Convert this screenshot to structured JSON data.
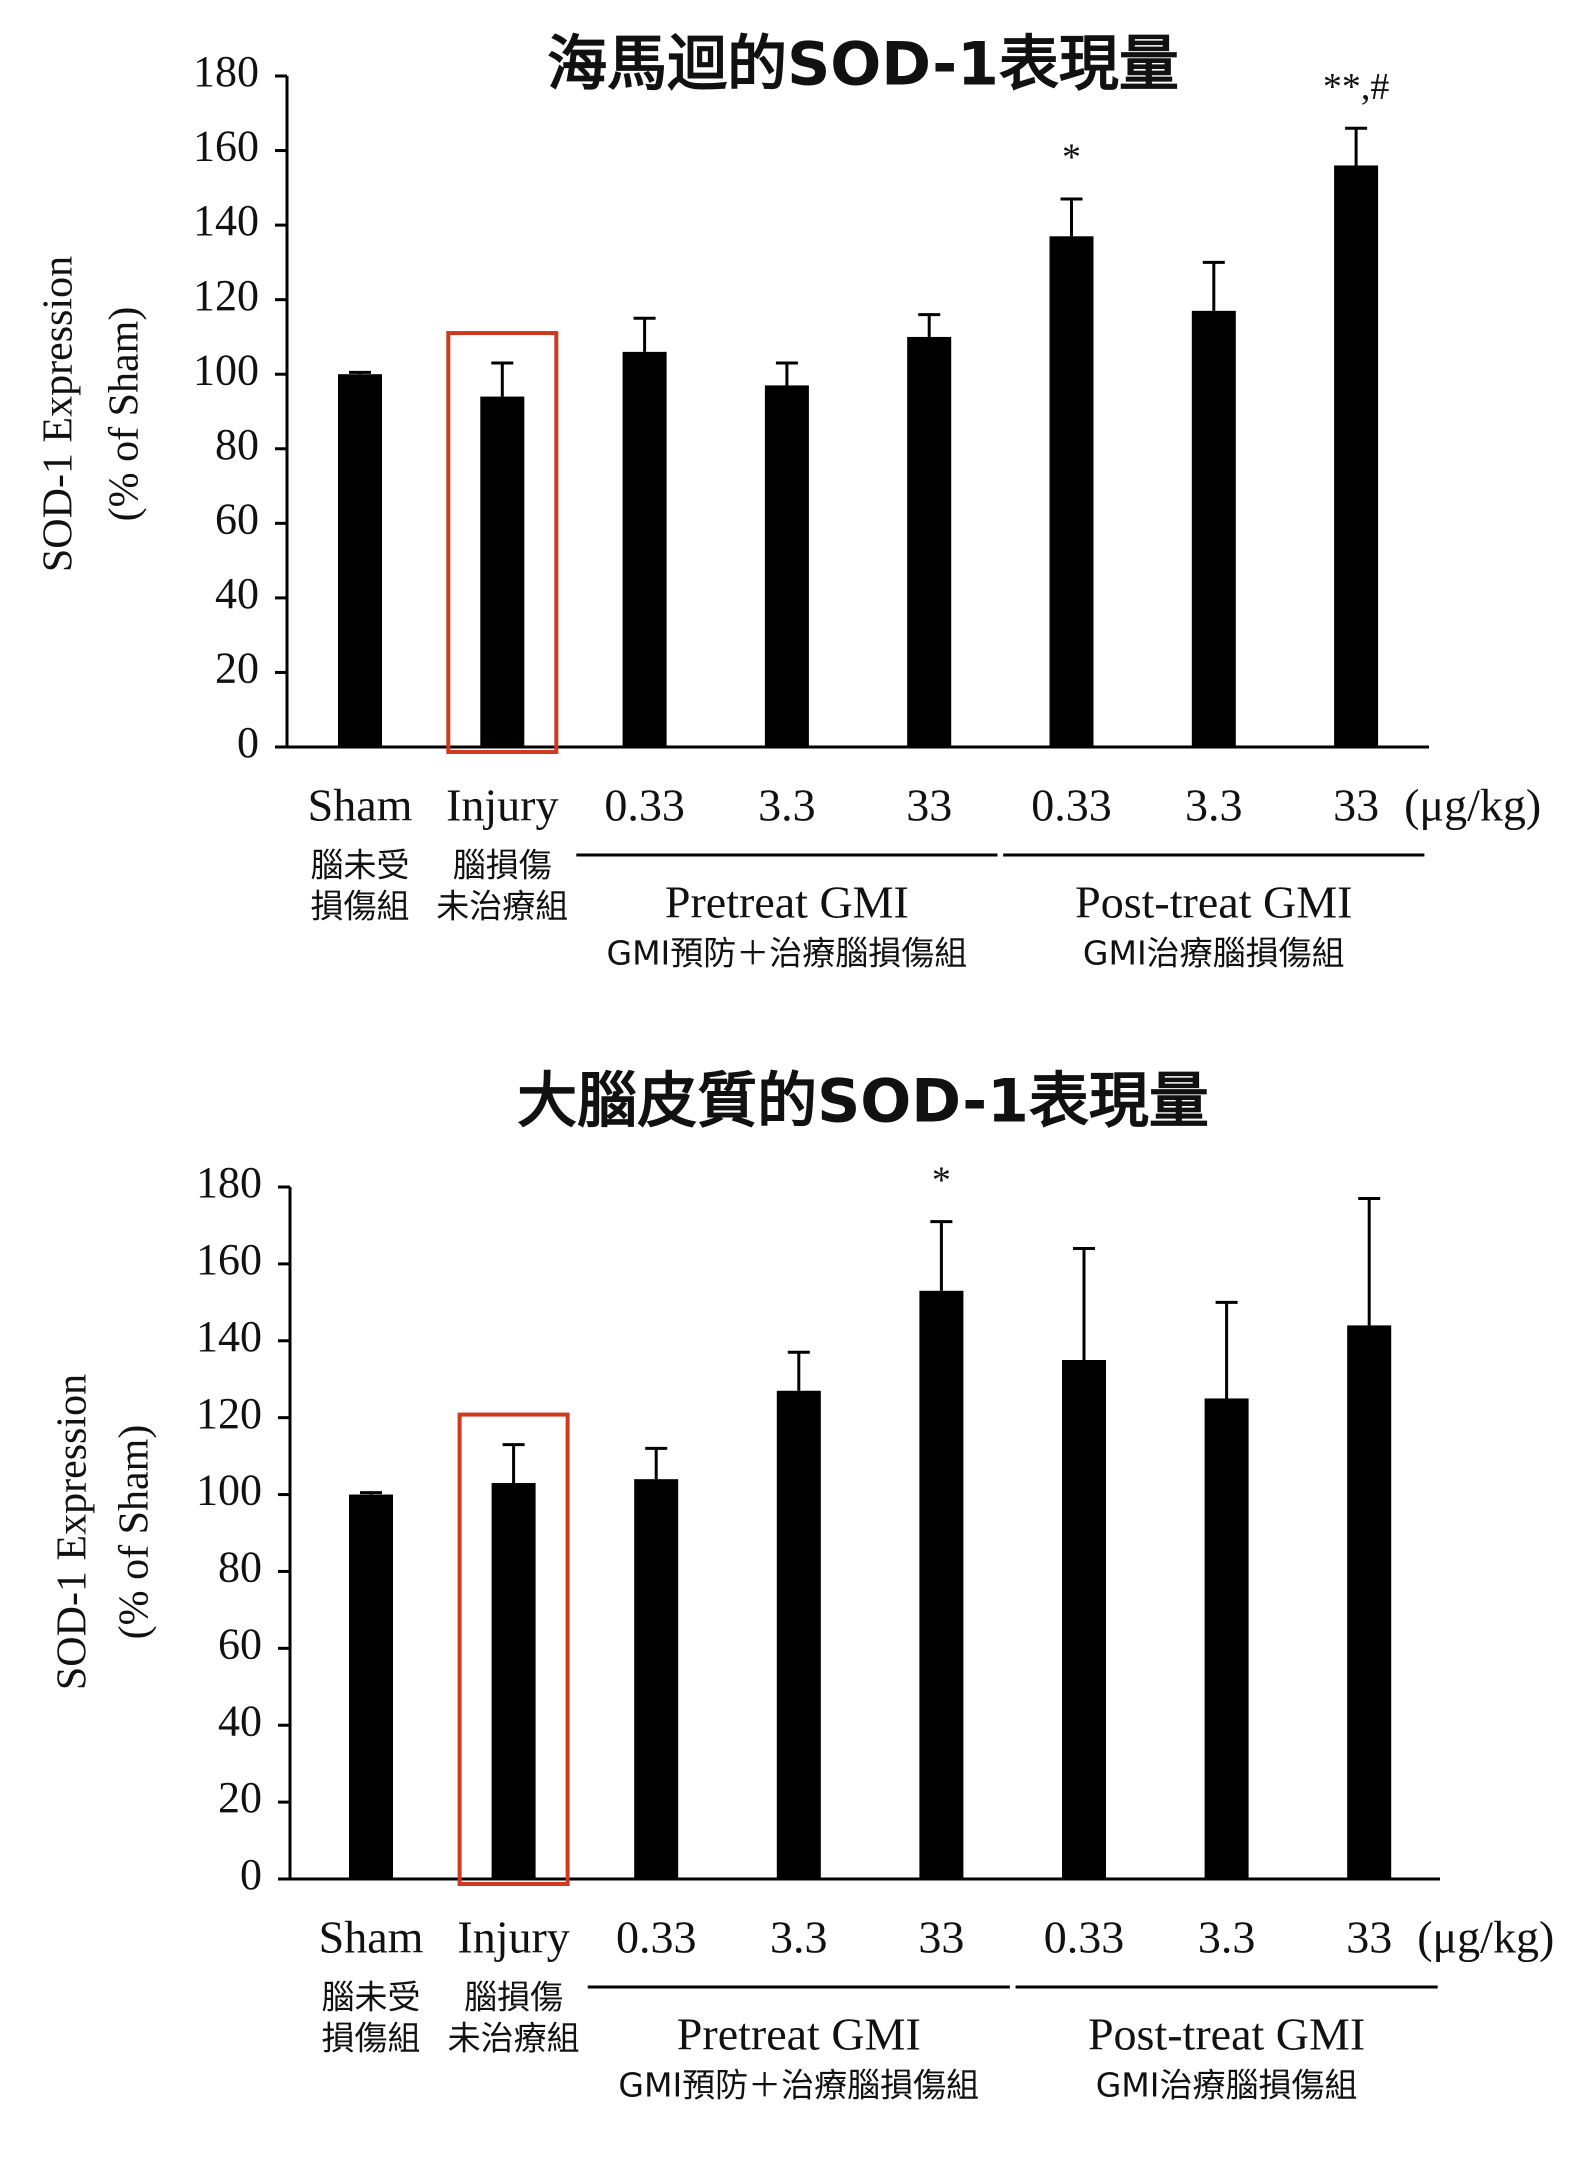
{
  "chart_data": [
    {
      "type": "bar",
      "title": "海馬迴的SOD-1表現量",
      "y_label": [
        "SOD-1 Expression",
        "(% of Sham)"
      ],
      "categories": [
        "Sham",
        "Injury",
        "0.33",
        "3.3",
        "33",
        "0.33",
        "3.3",
        "33"
      ],
      "category_notes": [
        [
          "腦未受",
          "損傷組"
        ],
        [
          "腦損傷",
          "未治療組"
        ],
        null,
        null,
        null,
        null,
        null,
        null
      ],
      "unit": "(μg/kg)",
      "groups": [
        {
          "label": "Pretreat GMI",
          "note": "GMI預防＋治療腦損傷組",
          "indices": [
            2,
            4
          ]
        },
        {
          "label": "Post-treat GMI",
          "note": "GMI治療腦損傷組",
          "indices": [
            5,
            7
          ]
        }
      ],
      "values": [
        100,
        94,
        106,
        97,
        110,
        137,
        117,
        156
      ],
      "errors": [
        0.5,
        9,
        9,
        6,
        6,
        10,
        13,
        10
      ],
      "annotations": [
        null,
        null,
        null,
        null,
        null,
        "*",
        null,
        "**,#"
      ],
      "color": "#000000",
      "highlight_index": 1,
      "highlight_color": "#d0391f",
      "ylim": [
        0,
        180
      ],
      "yticks": [
        0,
        20,
        40,
        60,
        80,
        100,
        120,
        140,
        160,
        180
      ]
    },
    {
      "type": "bar",
      "title": "大腦皮質的SOD-1表現量",
      "y_label": [
        "SOD-1 Expression",
        "(% of Sham)"
      ],
      "categories": [
        "Sham",
        "Injury",
        "0.33",
        "3.3",
        "33",
        "0.33",
        "3.3",
        "33"
      ],
      "category_notes": [
        [
          "腦未受",
          "損傷組"
        ],
        [
          "腦損傷",
          "未治療組"
        ],
        null,
        null,
        null,
        null,
        null,
        null
      ],
      "unit": "(μg/kg)",
      "groups": [
        {
          "label": "Pretreat GMI",
          "note": "GMI預防＋治療腦損傷組",
          "indices": [
            2,
            4
          ]
        },
        {
          "label": "Post-treat GMI",
          "note": "GMI治療腦損傷組",
          "indices": [
            5,
            7
          ]
        }
      ],
      "values": [
        100,
        103,
        104,
        127,
        153,
        135,
        125,
        144
      ],
      "errors": [
        0.5,
        10,
        8,
        10,
        18,
        29,
        25,
        33
      ],
      "annotations": [
        null,
        null,
        null,
        null,
        "*",
        null,
        null,
        null
      ],
      "color": "#000000",
      "highlight_index": 1,
      "highlight_color": "#d0391f",
      "ylim": [
        0,
        180
      ],
      "yticks": [
        0,
        20,
        40,
        60,
        80,
        100,
        120,
        140,
        160,
        180
      ]
    }
  ]
}
